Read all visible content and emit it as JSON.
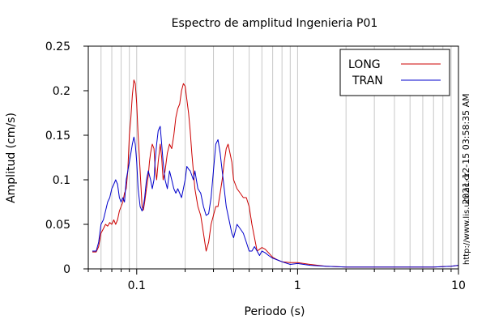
{
  "chart_data": {
    "type": "line",
    "title": "Espectro de amplitud Ingenieria P01",
    "xlabel": "Periodo (s)",
    "ylabel": "Amplitud (cm/s)",
    "x_scale": "log",
    "xlim": [
      0.05,
      10
    ],
    "ylim": [
      0,
      0.25
    ],
    "x_ticks": [
      {
        "value": 0.1,
        "label": "0.1"
      },
      {
        "value": 1,
        "label": "1"
      },
      {
        "value": 10,
        "label": "10"
      }
    ],
    "y_ticks": [
      {
        "value": 0,
        "label": "0"
      },
      {
        "value": 0.05,
        "label": "0.05"
      },
      {
        "value": 0.1,
        "label": "0.1"
      },
      {
        "value": 0.15,
        "label": "0.15"
      },
      {
        "value": 0.2,
        "label": "0.2"
      },
      {
        "value": 0.25,
        "label": "0.25"
      }
    ],
    "grid": "vertical",
    "legend_position": "top-right",
    "side_text": [
      "2021-12-15 03:58:35 AM",
      "http://www.lis.ucr.ac.cr"
    ],
    "colors": {
      "LONG": "#cc0000",
      "TRAN": "#0000cc"
    },
    "series": [
      {
        "name": "LONG",
        "x": [
          0.053,
          0.056,
          0.058,
          0.06,
          0.062,
          0.064,
          0.066,
          0.068,
          0.07,
          0.072,
          0.074,
          0.076,
          0.078,
          0.08,
          0.082,
          0.084,
          0.086,
          0.088,
          0.09,
          0.092,
          0.094,
          0.096,
          0.098,
          0.1,
          0.102,
          0.105,
          0.108,
          0.11,
          0.112,
          0.115,
          0.118,
          0.12,
          0.122,
          0.125,
          0.128,
          0.13,
          0.133,
          0.136,
          0.14,
          0.143,
          0.146,
          0.15,
          0.155,
          0.16,
          0.165,
          0.17,
          0.175,
          0.18,
          0.185,
          0.19,
          0.195,
          0.2,
          0.205,
          0.21,
          0.215,
          0.22,
          0.225,
          0.23,
          0.24,
          0.25,
          0.26,
          0.27,
          0.28,
          0.29,
          0.3,
          0.31,
          0.32,
          0.33,
          0.34,
          0.35,
          0.36,
          0.37,
          0.38,
          0.39,
          0.4,
          0.42,
          0.44,
          0.46,
          0.48,
          0.5,
          0.52,
          0.54,
          0.56,
          0.58,
          0.6,
          0.63,
          0.66,
          0.7,
          0.75,
          0.8,
          0.9,
          1.0,
          1.2,
          1.5,
          2.0,
          3.0,
          5.0,
          7.0,
          9.0,
          10.0
        ],
        "values": [
          0.019,
          0.019,
          0.025,
          0.04,
          0.045,
          0.05,
          0.048,
          0.052,
          0.05,
          0.055,
          0.05,
          0.055,
          0.065,
          0.07,
          0.075,
          0.085,
          0.09,
          0.11,
          0.15,
          0.17,
          0.195,
          0.212,
          0.208,
          0.185,
          0.15,
          0.11,
          0.07,
          0.066,
          0.075,
          0.09,
          0.105,
          0.12,
          0.13,
          0.14,
          0.135,
          0.115,
          0.1,
          0.12,
          0.14,
          0.125,
          0.1,
          0.11,
          0.13,
          0.14,
          0.135,
          0.15,
          0.17,
          0.18,
          0.185,
          0.2,
          0.208,
          0.205,
          0.19,
          0.175,
          0.155,
          0.13,
          0.11,
          0.09,
          0.07,
          0.06,
          0.04,
          0.02,
          0.03,
          0.05,
          0.06,
          0.07,
          0.07,
          0.085,
          0.1,
          0.12,
          0.135,
          0.14,
          0.13,
          0.12,
          0.1,
          0.09,
          0.085,
          0.08,
          0.08,
          0.07,
          0.05,
          0.035,
          0.02,
          0.022,
          0.024,
          0.022,
          0.018,
          0.013,
          0.01,
          0.008,
          0.007,
          0.007,
          0.005,
          0.003,
          0.002,
          0.002,
          0.002,
          0.002,
          0.003,
          0.004
        ]
      },
      {
        "name": "TRAN",
        "x": [
          0.053,
          0.056,
          0.058,
          0.06,
          0.062,
          0.064,
          0.066,
          0.068,
          0.07,
          0.072,
          0.074,
          0.076,
          0.078,
          0.08,
          0.082,
          0.084,
          0.086,
          0.088,
          0.09,
          0.092,
          0.094,
          0.096,
          0.098,
          0.1,
          0.102,
          0.105,
          0.108,
          0.11,
          0.112,
          0.115,
          0.118,
          0.12,
          0.122,
          0.125,
          0.128,
          0.13,
          0.133,
          0.136,
          0.14,
          0.143,
          0.146,
          0.15,
          0.155,
          0.16,
          0.165,
          0.17,
          0.175,
          0.18,
          0.185,
          0.19,
          0.195,
          0.2,
          0.205,
          0.21,
          0.215,
          0.22,
          0.225,
          0.23,
          0.24,
          0.25,
          0.26,
          0.27,
          0.28,
          0.29,
          0.3,
          0.31,
          0.32,
          0.33,
          0.34,
          0.35,
          0.36,
          0.37,
          0.38,
          0.39,
          0.4,
          0.42,
          0.44,
          0.46,
          0.48,
          0.5,
          0.52,
          0.54,
          0.56,
          0.58,
          0.6,
          0.63,
          0.66,
          0.7,
          0.75,
          0.8,
          0.9,
          1.0,
          1.2,
          1.5,
          2.0,
          3.0,
          5.0,
          7.0,
          9.0,
          10.0
        ],
        "values": [
          0.02,
          0.02,
          0.03,
          0.05,
          0.055,
          0.065,
          0.075,
          0.08,
          0.09,
          0.095,
          0.1,
          0.095,
          0.08,
          0.075,
          0.08,
          0.075,
          0.1,
          0.11,
          0.12,
          0.13,
          0.14,
          0.148,
          0.14,
          0.12,
          0.09,
          0.07,
          0.065,
          0.07,
          0.08,
          0.1,
          0.11,
          0.105,
          0.1,
          0.09,
          0.1,
          0.12,
          0.14,
          0.155,
          0.16,
          0.14,
          0.12,
          0.1,
          0.09,
          0.11,
          0.1,
          0.09,
          0.085,
          0.09,
          0.085,
          0.08,
          0.09,
          0.1,
          0.115,
          0.112,
          0.11,
          0.105,
          0.1,
          0.11,
          0.09,
          0.085,
          0.07,
          0.06,
          0.062,
          0.08,
          0.11,
          0.14,
          0.145,
          0.13,
          0.11,
          0.09,
          0.07,
          0.06,
          0.05,
          0.04,
          0.035,
          0.05,
          0.045,
          0.04,
          0.03,
          0.02,
          0.02,
          0.025,
          0.02,
          0.015,
          0.02,
          0.018,
          0.015,
          0.012,
          0.01,
          0.008,
          0.005,
          0.006,
          0.004,
          0.003,
          0.002,
          0.002,
          0.002,
          0.002,
          0.003,
          0.004
        ]
      }
    ]
  }
}
